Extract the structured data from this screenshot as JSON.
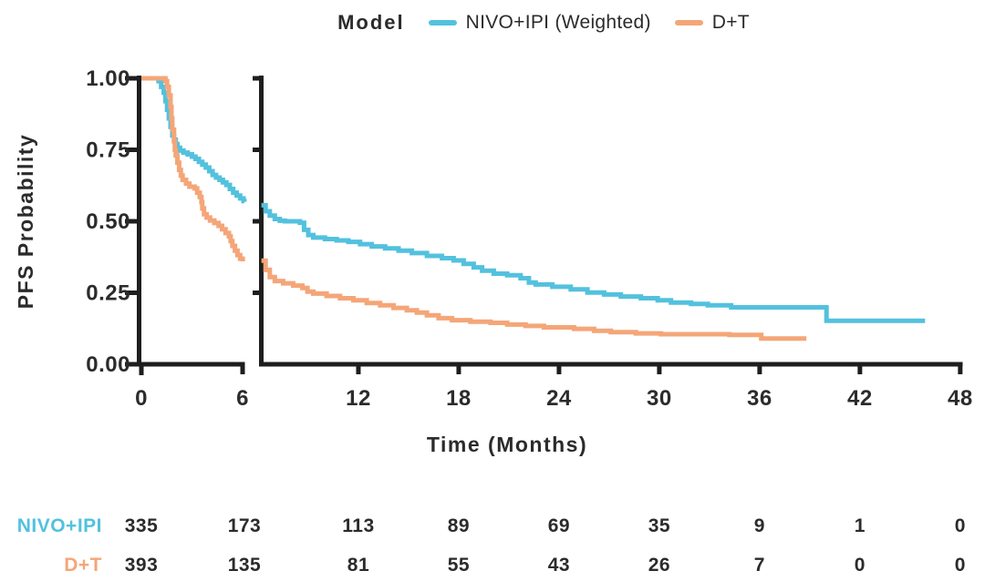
{
  "legend": {
    "title": "Model",
    "items": [
      {
        "label": "NIVO+IPI (Weighted)",
        "color": "#53c1de"
      },
      {
        "label": "D+T",
        "color": "#f4a678"
      }
    ]
  },
  "colors": {
    "axis": "#1e1e1e",
    "text": "#2b2b2b"
  },
  "chart_data": {
    "type": "line",
    "subtype": "kaplan-meier-step",
    "title": "",
    "xlabel": "Time (Months)",
    "ylabel": "PFS Probability",
    "x_axis": {
      "xlim": [
        0,
        48
      ],
      "axis_break_after_month": 6,
      "panel1_ticks": [
        0,
        6
      ],
      "panel2_ticks": [
        12,
        18,
        24,
        30,
        36,
        42,
        48
      ]
    },
    "y_axis": {
      "ylim": [
        0,
        1
      ],
      "ticks": [
        1.0,
        0.75,
        0.5,
        0.25,
        0.0
      ],
      "tick_labels": [
        "1.00",
        "0.75",
        "0.50",
        "0.25",
        "0.00"
      ],
      "grid": false
    },
    "series": [
      {
        "name": "NIVO+IPI (Weighted)",
        "color": "#53c1de",
        "points_panel1": [
          [
            0,
            1.0
          ],
          [
            0.85,
            1.0
          ],
          [
            1.0,
            0.99
          ],
          [
            1.15,
            0.97
          ],
          [
            1.3,
            0.95
          ],
          [
            1.4,
            0.92
          ],
          [
            1.5,
            0.89
          ],
          [
            1.6,
            0.86
          ],
          [
            1.7,
            0.83
          ],
          [
            1.8,
            0.8
          ],
          [
            1.9,
            0.785
          ],
          [
            2.0,
            0.77
          ],
          [
            2.1,
            0.757
          ],
          [
            2.25,
            0.747
          ],
          [
            2.45,
            0.74
          ],
          [
            2.7,
            0.734
          ],
          [
            2.95,
            0.726
          ],
          [
            3.15,
            0.718
          ],
          [
            3.35,
            0.708
          ],
          [
            3.55,
            0.698
          ],
          [
            3.75,
            0.688
          ],
          [
            3.95,
            0.675
          ],
          [
            4.15,
            0.662
          ],
          [
            4.35,
            0.653
          ],
          [
            4.55,
            0.645
          ],
          [
            4.75,
            0.636
          ],
          [
            4.95,
            0.627
          ],
          [
            5.15,
            0.613
          ],
          [
            5.35,
            0.6
          ],
          [
            5.55,
            0.59
          ],
          [
            5.75,
            0.58
          ],
          [
            5.95,
            0.571
          ],
          [
            6.0,
            0.568
          ]
        ],
        "points_panel2": [
          [
            6.2,
            0.556
          ],
          [
            6.45,
            0.535
          ],
          [
            6.7,
            0.52
          ],
          [
            7.0,
            0.508
          ],
          [
            7.3,
            0.502
          ],
          [
            7.6,
            0.5
          ],
          [
            8.5,
            0.495
          ],
          [
            8.75,
            0.47
          ],
          [
            9.0,
            0.452
          ],
          [
            9.3,
            0.443
          ],
          [
            10.0,
            0.438
          ],
          [
            10.7,
            0.433
          ],
          [
            11.4,
            0.428
          ],
          [
            12.1,
            0.42
          ],
          [
            12.8,
            0.412
          ],
          [
            13.6,
            0.405
          ],
          [
            14.4,
            0.397
          ],
          [
            15.2,
            0.389
          ],
          [
            16.1,
            0.379
          ],
          [
            17.0,
            0.371
          ],
          [
            17.7,
            0.363
          ],
          [
            18.3,
            0.351
          ],
          [
            18.9,
            0.339
          ],
          [
            19.4,
            0.327
          ],
          [
            20.1,
            0.317
          ],
          [
            20.9,
            0.311
          ],
          [
            21.7,
            0.301
          ],
          [
            22.2,
            0.286
          ],
          [
            22.6,
            0.279
          ],
          [
            23.6,
            0.271
          ],
          [
            24.7,
            0.262
          ],
          [
            25.7,
            0.251
          ],
          [
            26.7,
            0.244
          ],
          [
            27.7,
            0.237
          ],
          [
            28.9,
            0.231
          ],
          [
            29.9,
            0.224
          ],
          [
            30.7,
            0.216
          ],
          [
            31.9,
            0.211
          ],
          [
            32.9,
            0.206
          ],
          [
            34.3,
            0.199
          ],
          [
            39.9,
            0.199
          ],
          [
            40.0,
            0.152
          ],
          [
            45.9,
            0.152
          ]
        ]
      },
      {
        "name": "D+T",
        "color": "#f4a678",
        "points_panel1": [
          [
            0,
            1.0
          ],
          [
            1.25,
            1.0
          ],
          [
            1.4,
            0.99
          ],
          [
            1.5,
            0.97
          ],
          [
            1.6,
            0.94
          ],
          [
            1.7,
            0.9
          ],
          [
            1.75,
            0.86
          ],
          [
            1.8,
            0.82
          ],
          [
            1.9,
            0.78
          ],
          [
            1.95,
            0.75
          ],
          [
            2.0,
            0.73
          ],
          [
            2.1,
            0.705
          ],
          [
            2.2,
            0.68
          ],
          [
            2.3,
            0.66
          ],
          [
            2.4,
            0.645
          ],
          [
            2.6,
            0.632
          ],
          [
            2.8,
            0.621
          ],
          [
            3.1,
            0.615
          ],
          [
            3.25,
            0.6
          ],
          [
            3.4,
            0.585
          ],
          [
            3.5,
            0.567
          ],
          [
            3.55,
            0.545
          ],
          [
            3.65,
            0.525
          ],
          [
            3.8,
            0.513
          ],
          [
            4.0,
            0.503
          ],
          [
            4.25,
            0.494
          ],
          [
            4.5,
            0.484
          ],
          [
            4.7,
            0.472
          ],
          [
            4.9,
            0.459
          ],
          [
            5.1,
            0.447
          ],
          [
            5.2,
            0.431
          ],
          [
            5.3,
            0.414
          ],
          [
            5.45,
            0.397
          ],
          [
            5.6,
            0.382
          ],
          [
            5.75,
            0.369
          ],
          [
            5.9,
            0.36
          ]
        ],
        "points_panel2": [
          [
            6.2,
            0.362
          ],
          [
            6.45,
            0.33
          ],
          [
            6.7,
            0.305
          ],
          [
            7.0,
            0.291
          ],
          [
            7.5,
            0.283
          ],
          [
            8.1,
            0.275
          ],
          [
            8.65,
            0.267
          ],
          [
            8.95,
            0.254
          ],
          [
            9.3,
            0.247
          ],
          [
            10.1,
            0.239
          ],
          [
            10.9,
            0.231
          ],
          [
            11.7,
            0.224
          ],
          [
            12.5,
            0.214
          ],
          [
            13.3,
            0.206
          ],
          [
            14.1,
            0.197
          ],
          [
            14.9,
            0.189
          ],
          [
            15.5,
            0.181
          ],
          [
            16.1,
            0.171
          ],
          [
            16.8,
            0.161
          ],
          [
            17.6,
            0.154
          ],
          [
            18.7,
            0.149
          ],
          [
            19.9,
            0.145
          ],
          [
            20.9,
            0.139
          ],
          [
            22.0,
            0.134
          ],
          [
            23.1,
            0.129
          ],
          [
            24.9,
            0.124
          ],
          [
            26.1,
            0.117
          ],
          [
            27.1,
            0.112
          ],
          [
            28.6,
            0.108
          ],
          [
            30.1,
            0.105
          ],
          [
            34.2,
            0.103
          ],
          [
            36.1,
            0.09
          ],
          [
            38.8,
            0.09
          ]
        ]
      }
    ],
    "risk_table": {
      "times": [
        0,
        6,
        12,
        18,
        24,
        30,
        36,
        42,
        48
      ],
      "rows": [
        {
          "label": "NIVO+IPI",
          "color": "#53c1de",
          "values": [
            335,
            173,
            113,
            89,
            69,
            35,
            9,
            1,
            0
          ]
        },
        {
          "label": "D+T",
          "color": "#f4a678",
          "values": [
            393,
            135,
            81,
            55,
            43,
            26,
            7,
            0,
            0
          ]
        }
      ]
    }
  }
}
